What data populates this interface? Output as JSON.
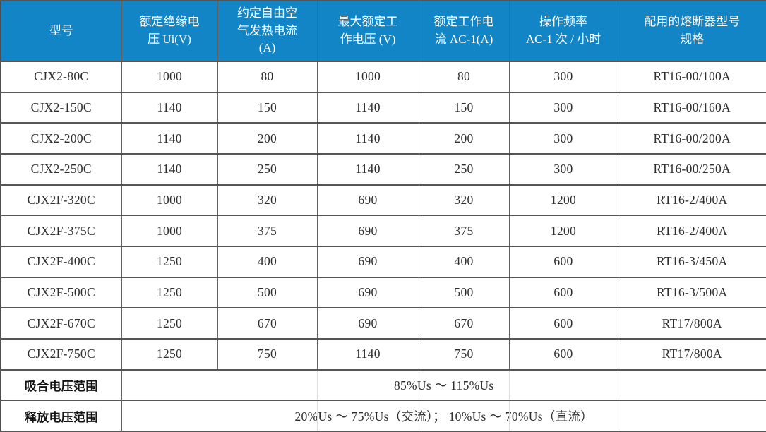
{
  "table": {
    "columns": [
      "型号",
      "额定绝缘电\n压 Ui(V)",
      "约定自由空\n气发热电流\n(A)",
      "最大额定工\n作电压 (V)",
      "额定工作电\n流 AC-1(A)",
      "操作频率\nAC-1 次 / 小时",
      "配用的熔断器型号\n规格"
    ],
    "rows": [
      [
        "CJX2-80C",
        "1000",
        "80",
        "1000",
        "80",
        "300",
        "RT16-00/100A"
      ],
      [
        "CJX2-150C",
        "1140",
        "150",
        "1140",
        "150",
        "300",
        "RT16-00/160A"
      ],
      [
        "CJX2-200C",
        "1140",
        "200",
        "1140",
        "200",
        "300",
        "RT16-00/200A"
      ],
      [
        "CJX2-250C",
        "1140",
        "250",
        "1140",
        "250",
        "300",
        "RT16-00/250A"
      ],
      [
        "CJX2F-320C",
        "1000",
        "320",
        "690",
        "320",
        "1200",
        "RT16-2/400A"
      ],
      [
        "CJX2F-375C",
        "1000",
        "375",
        "690",
        "375",
        "1200",
        "RT16-2/400A"
      ],
      [
        "CJX2F-400C",
        "1250",
        "400",
        "690",
        "400",
        "600",
        "RT16-3/450A"
      ],
      [
        "CJX2F-500C",
        "1250",
        "500",
        "690",
        "500",
        "600",
        "RT16-3/500A"
      ],
      [
        "CJX2F-670C",
        "1250",
        "670",
        "690",
        "670",
        "600",
        "RT17/800A"
      ],
      [
        "CJX2F-750C",
        "1250",
        "750",
        "1140",
        "750",
        "600",
        "RT17/800A"
      ]
    ],
    "footer_rows": [
      {
        "label": "吸合电压范围",
        "value": "85%Us ～ 115%Us"
      },
      {
        "label": "释放电压范围",
        "value": "20%Us ～ 75%Us（交流）； 10%Us ～ 70%Us（直流）"
      }
    ],
    "colors": {
      "header_bg": "#1185c5",
      "header_text": "#ffffff",
      "body_text": "#2e2e2e",
      "grid_border": "#565656"
    }
  }
}
